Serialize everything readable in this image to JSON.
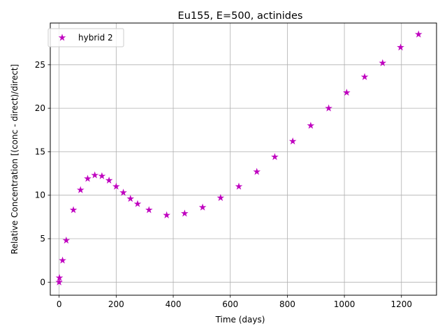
{
  "chart_data": {
    "type": "scatter",
    "title": "Eu155, E=500, actinides",
    "xlabel": "Time (days)",
    "ylabel": "Relative Concentration [(conc - direct)/direct]",
    "xlim": [
      -31,
      1323
    ],
    "ylim": [
      -1.5,
      29.8
    ],
    "xticks": [
      0,
      200,
      400,
      600,
      800,
      1000,
      1200
    ],
    "yticks": [
      0,
      5,
      10,
      15,
      20,
      25
    ],
    "grid": true,
    "legend_position": "upper left",
    "series": [
      {
        "name": "hybrid 2",
        "marker": "star",
        "color": "#bf00bf",
        "x": [
          0,
          1,
          12,
          25,
          50,
          75,
          100,
          125,
          150,
          175,
          200,
          225,
          250,
          275,
          315,
          377,
          440,
          503,
          566,
          630,
          693,
          756,
          819,
          882,
          945,
          1008,
          1071,
          1134,
          1197,
          1260
        ],
        "y": [
          0.0,
          0.5,
          2.5,
          4.8,
          8.3,
          10.6,
          11.9,
          12.3,
          12.2,
          11.7,
          11.0,
          10.3,
          9.6,
          9.0,
          8.3,
          7.7,
          7.9,
          8.6,
          9.7,
          11.0,
          12.7,
          14.4,
          16.2,
          18.0,
          20.0,
          21.8,
          23.6,
          25.2,
          27.0,
          28.5
        ]
      }
    ]
  }
}
